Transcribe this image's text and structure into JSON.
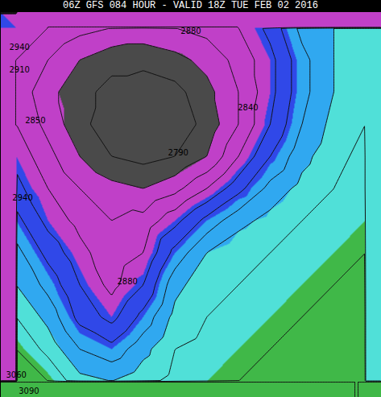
{
  "chart_data": {
    "type": "contour",
    "title": "06Z GFS 084 HOUR - VALID 18Z TUE FEB 02 2016",
    "xlim": [
      0,
      12
    ],
    "ylim": [
      0,
      12
    ],
    "tick_labels": false,
    "grid": false,
    "field": {
      "columns": 12,
      "rows": 12,
      "values": [
        [
          2900,
          2880,
          2860,
          2850,
          2840,
          2850,
          2860,
          2880,
          2920,
          2980,
          3000,
          3010
        ],
        [
          2880,
          2850,
          2820,
          2800,
          2800,
          2810,
          2830,
          2860,
          2900,
          2960,
          3000,
          3010
        ],
        [
          2870,
          2830,
          2800,
          2780,
          2770,
          2780,
          2810,
          2850,
          2900,
          2960,
          3000,
          3020
        ],
        [
          2880,
          2840,
          2800,
          2770,
          2760,
          2770,
          2800,
          2850,
          2910,
          2970,
          3010,
          3030
        ],
        [
          2900,
          2860,
          2820,
          2790,
          2780,
          2790,
          2820,
          2880,
          2940,
          2990,
          3020,
          3040
        ],
        [
          2920,
          2880,
          2850,
          2830,
          2820,
          2840,
          2880,
          2930,
          2980,
          3010,
          3030,
          3040
        ],
        [
          2950,
          2900,
          2870,
          2850,
          2860,
          2900,
          2950,
          2990,
          3010,
          3030,
          3040,
          3050
        ],
        [
          2980,
          2930,
          2890,
          2860,
          2880,
          2950,
          3000,
          3020,
          3030,
          3040,
          3050,
          3060
        ],
        [
          3000,
          2960,
          2910,
          2870,
          2910,
          2990,
          3020,
          3030,
          3040,
          3050,
          3060,
          3070
        ],
        [
          3030,
          2990,
          2930,
          2900,
          2950,
          3010,
          3030,
          3040,
          3050,
          3060,
          3070,
          3080
        ],
        [
          3060,
          3020,
          2970,
          2950,
          2990,
          3030,
          3040,
          3050,
          3060,
          3070,
          3080,
          3080
        ],
        [
          3090,
          3060,
          3010,
          3000,
          3020,
          3040,
          3050,
          3060,
          3070,
          3080,
          3090,
          3090
        ]
      ]
    },
    "contour_levels": [
      2760,
      2790,
      2820,
      2850,
      2880,
      2910,
      2940,
      2970,
      3000,
      3030,
      3060,
      3090
    ],
    "color_bands": {
      "thresholds": [
        2820,
        2900,
        2950,
        3000,
        3050
      ],
      "colors": [
        "#4a4a4a",
        "#c040c8",
        "#3048e8",
        "#30a8f0",
        "#50e0d8",
        "#40b848"
      ]
    },
    "contour_labels": [
      {
        "value": 2940,
        "x": 0.6,
        "y": 1.1
      },
      {
        "value": 2910,
        "x": 0.6,
        "y": 1.8
      },
      {
        "value": 2850,
        "x": 1.1,
        "y": 3.4
      },
      {
        "value": 2790,
        "x": 5.6,
        "y": 4.4
      },
      {
        "value": 2840,
        "x": 7.8,
        "y": 3.0
      },
      {
        "value": 2880,
        "x": 6.0,
        "y": 0.6
      },
      {
        "value": 2940,
        "x": 0.7,
        "y": 5.8
      },
      {
        "value": 2880,
        "x": 4.0,
        "y": 8.4
      },
      {
        "value": 3060,
        "x": 0.5,
        "y": 11.3
      },
      {
        "value": 3090,
        "x": 0.9,
        "y": 11.8
      }
    ]
  }
}
